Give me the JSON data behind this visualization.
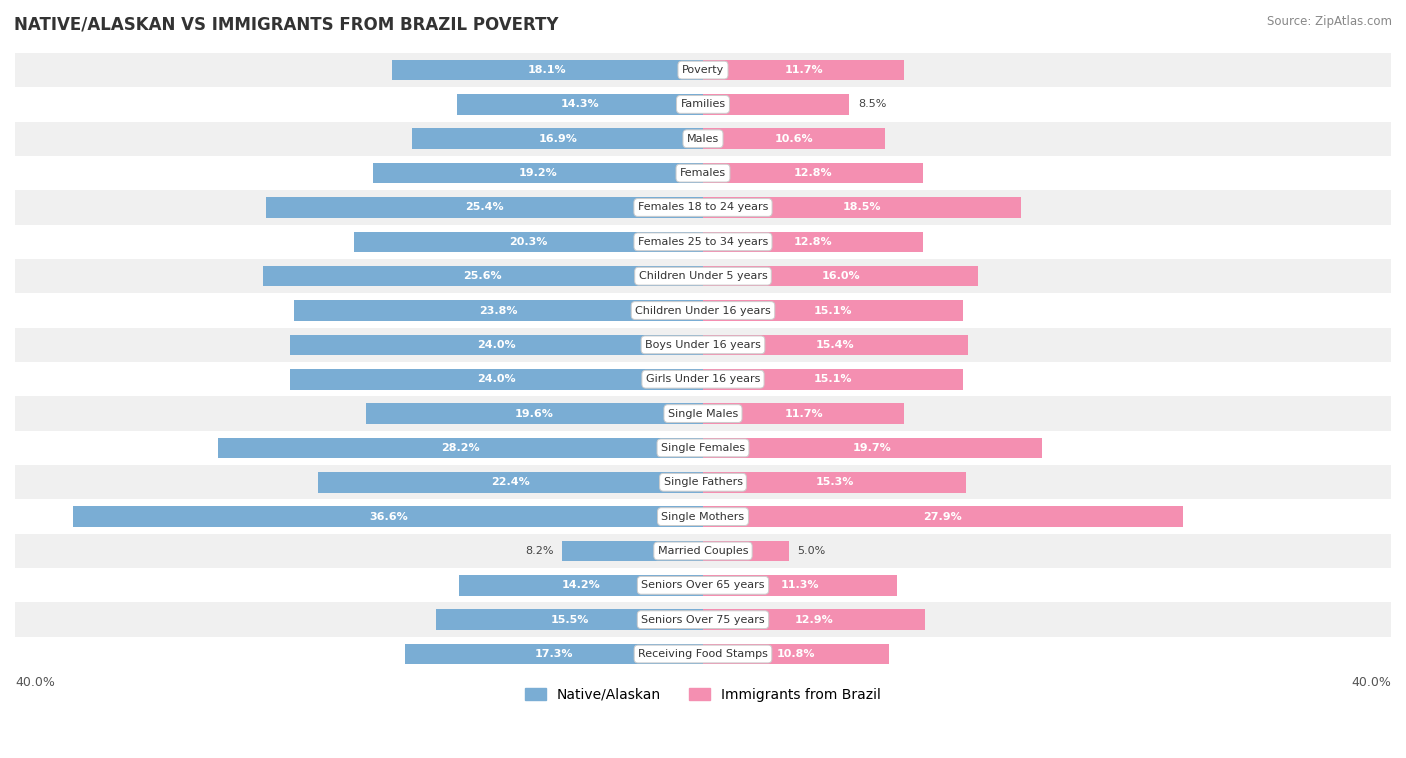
{
  "title": "NATIVE/ALASKAN VS IMMIGRANTS FROM BRAZIL POVERTY",
  "source": "Source: ZipAtlas.com",
  "categories": [
    "Poverty",
    "Families",
    "Males",
    "Females",
    "Females 18 to 24 years",
    "Females 25 to 34 years",
    "Children Under 5 years",
    "Children Under 16 years",
    "Boys Under 16 years",
    "Girls Under 16 years",
    "Single Males",
    "Single Females",
    "Single Fathers",
    "Single Mothers",
    "Married Couples",
    "Seniors Over 65 years",
    "Seniors Over 75 years",
    "Receiving Food Stamps"
  ],
  "native_values": [
    18.1,
    14.3,
    16.9,
    19.2,
    25.4,
    20.3,
    25.6,
    23.8,
    24.0,
    24.0,
    19.6,
    28.2,
    22.4,
    36.6,
    8.2,
    14.2,
    15.5,
    17.3
  ],
  "immigrant_values": [
    11.7,
    8.5,
    10.6,
    12.8,
    18.5,
    12.8,
    16.0,
    15.1,
    15.4,
    15.1,
    11.7,
    19.7,
    15.3,
    27.9,
    5.0,
    11.3,
    12.9,
    10.8
  ],
  "native_color": "#7aadd4",
  "immigrant_color": "#f48fb1",
  "background_row_light": "#f0f0f0",
  "background_row_white": "#ffffff",
  "axis_max": 40.0,
  "bar_height": 0.6,
  "legend_native": "Native/Alaskan",
  "legend_immigrant": "Immigrants from Brazil",
  "inside_label_threshold_native": 12.0,
  "inside_label_threshold_immigrant": 9.0
}
